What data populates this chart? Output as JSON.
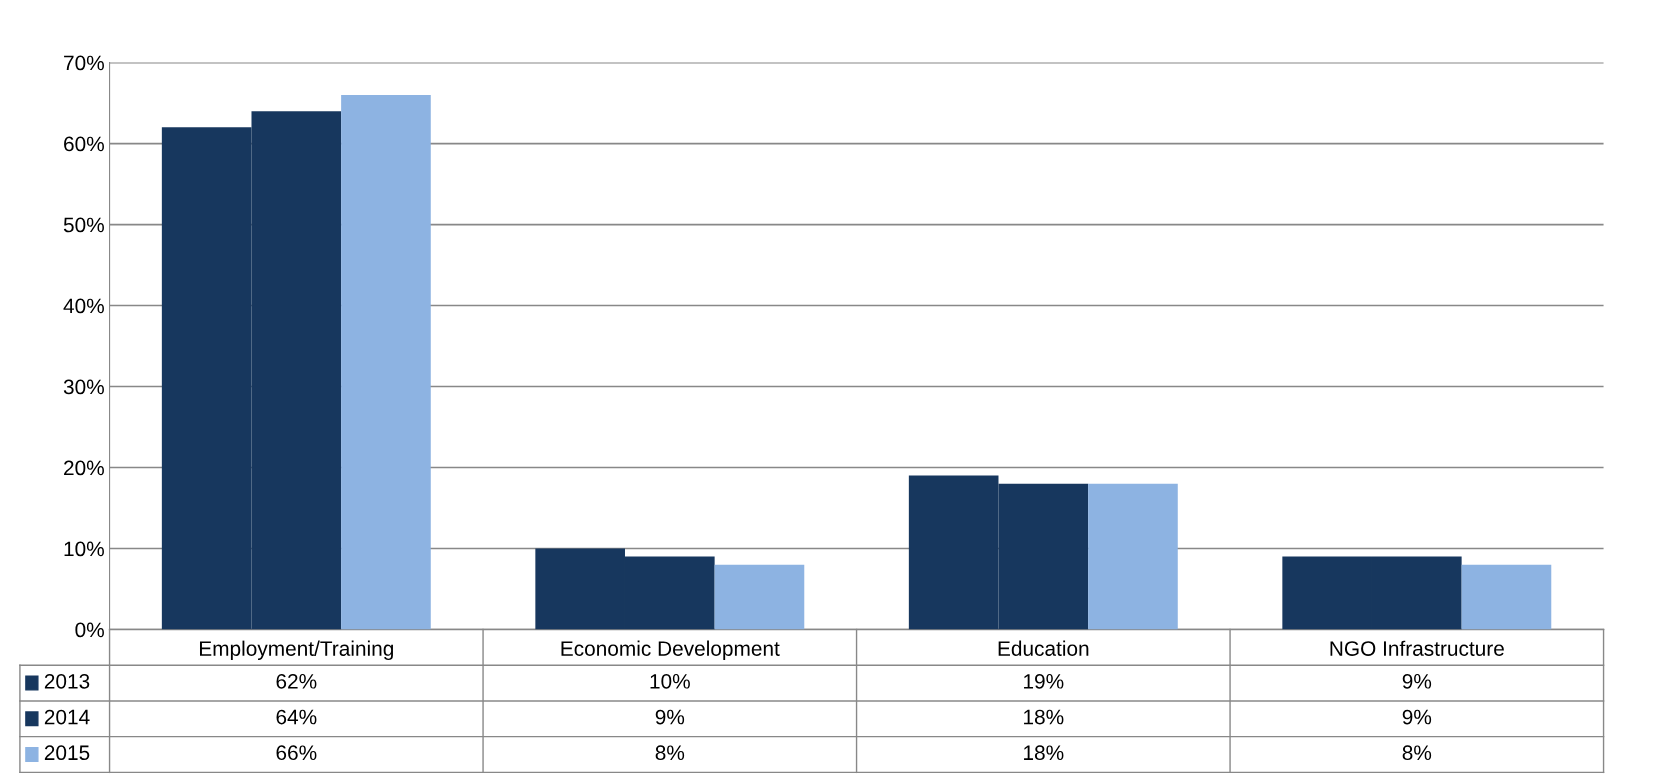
{
  "chart_data": {
    "type": "bar",
    "categories": [
      "Employment/Training",
      "Economic Development",
      "Education",
      "NGO Infrastructure"
    ],
    "series": [
      {
        "name": "2013",
        "color": "#17375e",
        "values": [
          62,
          10,
          19,
          9
        ],
        "value_labels": [
          "62%",
          "10%",
          "19%",
          "9%"
        ]
      },
      {
        "name": "2014",
        "color": "#17375e",
        "values": [
          64,
          9,
          18,
          9
        ],
        "value_labels": [
          "64%",
          "9%",
          "18%",
          "9%"
        ]
      },
      {
        "name": "2015",
        "color": "#8db3e2",
        "values": [
          66,
          8,
          18,
          8
        ],
        "value_labels": [
          "66%",
          "8%",
          "18%",
          "8%"
        ]
      }
    ],
    "ylim": [
      0,
      70
    ],
    "yticks": [
      {
        "value": 0,
        "label": "0%"
      },
      {
        "value": 10,
        "label": "10%"
      },
      {
        "value": 20,
        "label": "20%"
      },
      {
        "value": 30,
        "label": "30%"
      },
      {
        "value": 40,
        "label": "40%"
      },
      {
        "value": 50,
        "label": "50%"
      },
      {
        "value": 60,
        "label": "60%"
      },
      {
        "value": 70,
        "label": "70%"
      }
    ],
    "grid": "y",
    "legend": "bottom left"
  }
}
